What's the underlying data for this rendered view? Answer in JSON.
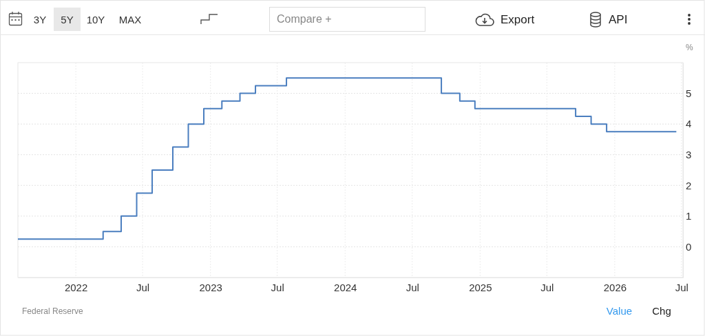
{
  "chart_data": {
    "type": "step",
    "ylabel": "%",
    "x": [
      "2021-07-28",
      "2022-03-16",
      "2022-05-04",
      "2022-06-15",
      "2022-07-27",
      "2022-09-21",
      "2022-11-02",
      "2022-12-14",
      "2023-02-01",
      "2023-03-22",
      "2023-05-03",
      "2023-07-26",
      "2024-09-18",
      "2024-11-07",
      "2024-12-18",
      "2025-09-17",
      "2025-10-29",
      "2025-12-10",
      "2026-06-17"
    ],
    "values": [
      0.25,
      0.5,
      1,
      1.75,
      2.5,
      3.25,
      4,
      4.5,
      4.75,
      5,
      5.25,
      5.5,
      5,
      4.75,
      4.5,
      4.25,
      4,
      3.75,
      3.75
    ],
    "color": "#4a7ebf",
    "xlim": [
      "2021-07-28",
      "2026-07-05"
    ],
    "xticks": [
      {
        "value": "2022-01-01",
        "label": "2022"
      },
      {
        "value": "2022-07-01",
        "label": "Jul"
      },
      {
        "value": "2023-01-01",
        "label": "2023"
      },
      {
        "value": "2023-07-01",
        "label": "Jul"
      },
      {
        "value": "2024-01-01",
        "label": "2024"
      },
      {
        "value": "2024-07-01",
        "label": "Jul"
      },
      {
        "value": "2025-01-01",
        "label": "2025"
      },
      {
        "value": "2025-07-01",
        "label": "Jul"
      },
      {
        "value": "2026-01-01",
        "label": "2026"
      },
      {
        "value": "2026-07-01",
        "label": "Jul"
      }
    ],
    "ylim": [
      -1,
      6
    ],
    "yticks": [
      0,
      1,
      2,
      3,
      4,
      5
    ],
    "grid": true,
    "annotations": [
      "3Y",
      "5Y",
      "10Y",
      "MAX",
      "Compare +",
      "Export",
      "API",
      "Federal Reserve",
      "Value",
      "Chg"
    ]
  }
}
